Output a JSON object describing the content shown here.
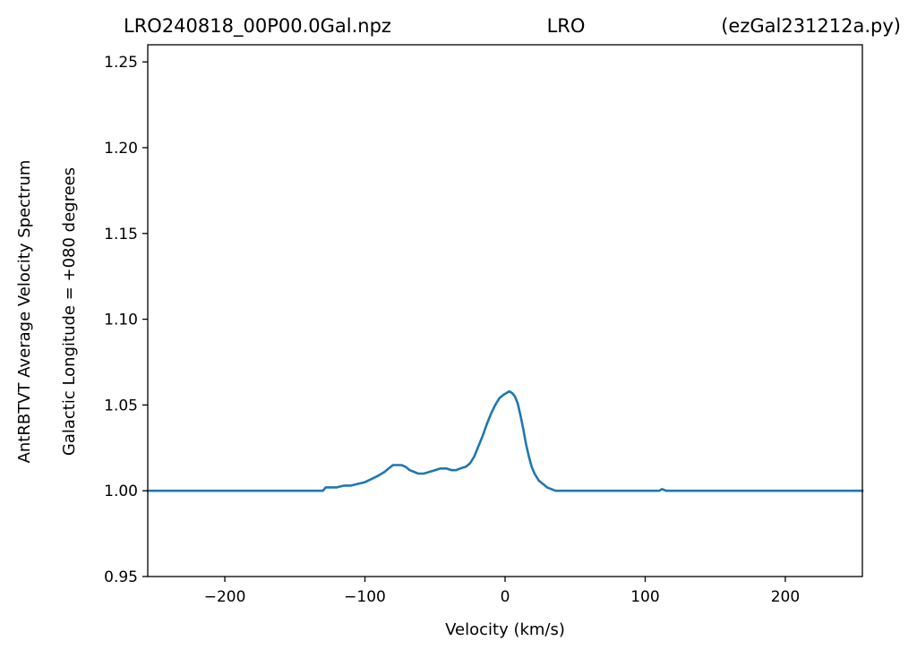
{
  "titles": {
    "left": "LRO240818_00P00.0Gal.npz",
    "center": "LRO",
    "right": "(ezGal231212a.py)"
  },
  "chart_data": {
    "type": "line",
    "xlabel": "Velocity (km/s)",
    "ylabel_outer": "AntRBTVT Average Velocity Spectrum",
    "ylabel_inner": "Galactic Longitude = +080 degrees",
    "xlim": [
      -255,
      255
    ],
    "ylim": [
      0.95,
      1.26
    ],
    "xticks": [
      -200,
      -100,
      0,
      100,
      200
    ],
    "xtick_labels": [
      "−200",
      "−100",
      "0",
      "100",
      "200"
    ],
    "yticks": [
      0.95,
      1.0,
      1.05,
      1.1,
      1.15,
      1.2,
      1.25
    ],
    "ytick_labels": [
      "0.95",
      "1.00",
      "1.05",
      "1.10",
      "1.15",
      "1.20",
      "1.25"
    ],
    "grid": false,
    "line_color": "#1f77b4",
    "series": [
      {
        "x": [
          -255,
          -130,
          -128,
          -125,
          -120,
          -115,
          -110,
          -105,
          -100,
          -95,
          -90,
          -86,
          -83,
          -80,
          -77,
          -74,
          -71,
          -68,
          -65,
          -62,
          -58,
          -54,
          -50,
          -46,
          -42,
          -38,
          -35,
          -32,
          -28,
          -25,
          -22,
          -19,
          -16,
          -13,
          -10,
          -7,
          -4,
          -1,
          1,
          3,
          5,
          7,
          9,
          11,
          13,
          15,
          17,
          19,
          21,
          24,
          27,
          30,
          33,
          36,
          40,
          43,
          50,
          55,
          60,
          98,
          100,
          105,
          110,
          112,
          115,
          125,
          127,
          130,
          255
        ],
        "y": [
          1.0,
          1.0,
          1.002,
          1.002,
          1.002,
          1.003,
          1.003,
          1.004,
          1.005,
          1.007,
          1.009,
          1.011,
          1.013,
          1.015,
          1.015,
          1.015,
          1.014,
          1.012,
          1.011,
          1.01,
          1.01,
          1.011,
          1.012,
          1.013,
          1.013,
          1.012,
          1.012,
          1.013,
          1.014,
          1.016,
          1.02,
          1.026,
          1.032,
          1.039,
          1.045,
          1.05,
          1.054,
          1.056,
          1.057,
          1.058,
          1.057,
          1.055,
          1.051,
          1.044,
          1.036,
          1.027,
          1.02,
          1.014,
          1.01,
          1.006,
          1.004,
          1.002,
          1.001,
          1.0,
          1.0,
          1.0,
          1.0,
          1.0,
          1.0,
          1.0,
          1.0,
          1.0,
          1.0,
          1.001,
          1.0,
          1.0,
          1.0,
          1.0,
          1.0
        ]
      }
    ]
  }
}
